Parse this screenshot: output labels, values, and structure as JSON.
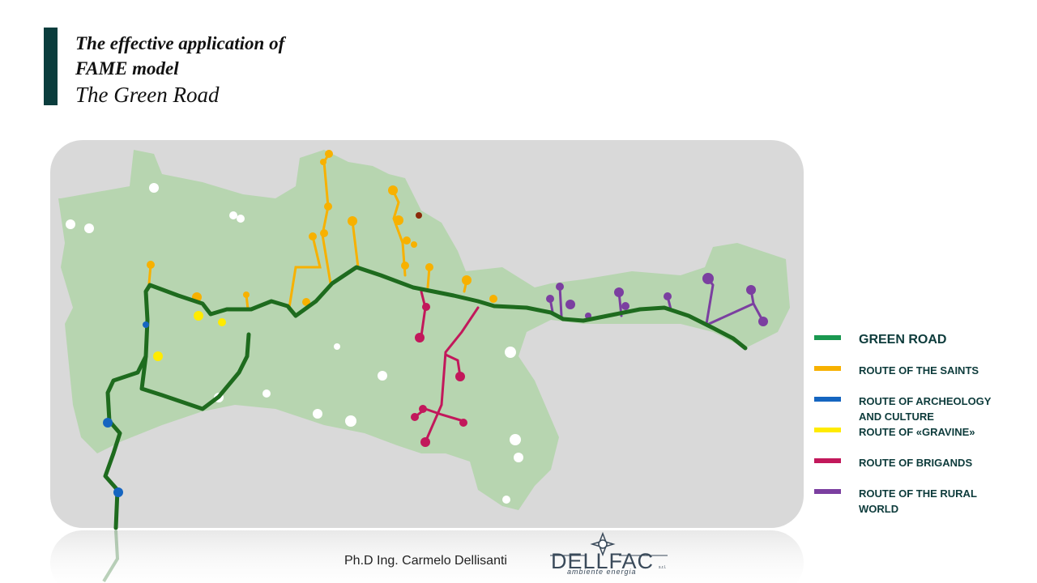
{
  "header": {
    "title_lines": [
      "The effective application of",
      "FAME model"
    ],
    "subtitle": "The Green Road"
  },
  "legend": {
    "items": [
      {
        "label": "GREEN ROAD",
        "color": "#1a9850"
      },
      {
        "label": "ROUTE OF THE SAINTS",
        "color": "#f7b100"
      },
      {
        "label": "ROUTE OF ARCHEOLOGY AND CULTURE",
        "color": "#1565c0"
      },
      {
        "label": "ROUTE OF «GRAVINE»",
        "color": "#ffeb00"
      },
      {
        "label": "ROUTE OF BRIGANDS",
        "color": "#c2185b"
      },
      {
        "label": "ROUTE OF THE RURAL WORLD",
        "color": "#7b3fa0"
      }
    ]
  },
  "footer": {
    "author": "Ph.D Ing. Carmelo Dellisanti",
    "logo_name": "DELLFAC",
    "logo_tagline": "ambiente energia",
    "logo_suffix": "s.r.l."
  }
}
